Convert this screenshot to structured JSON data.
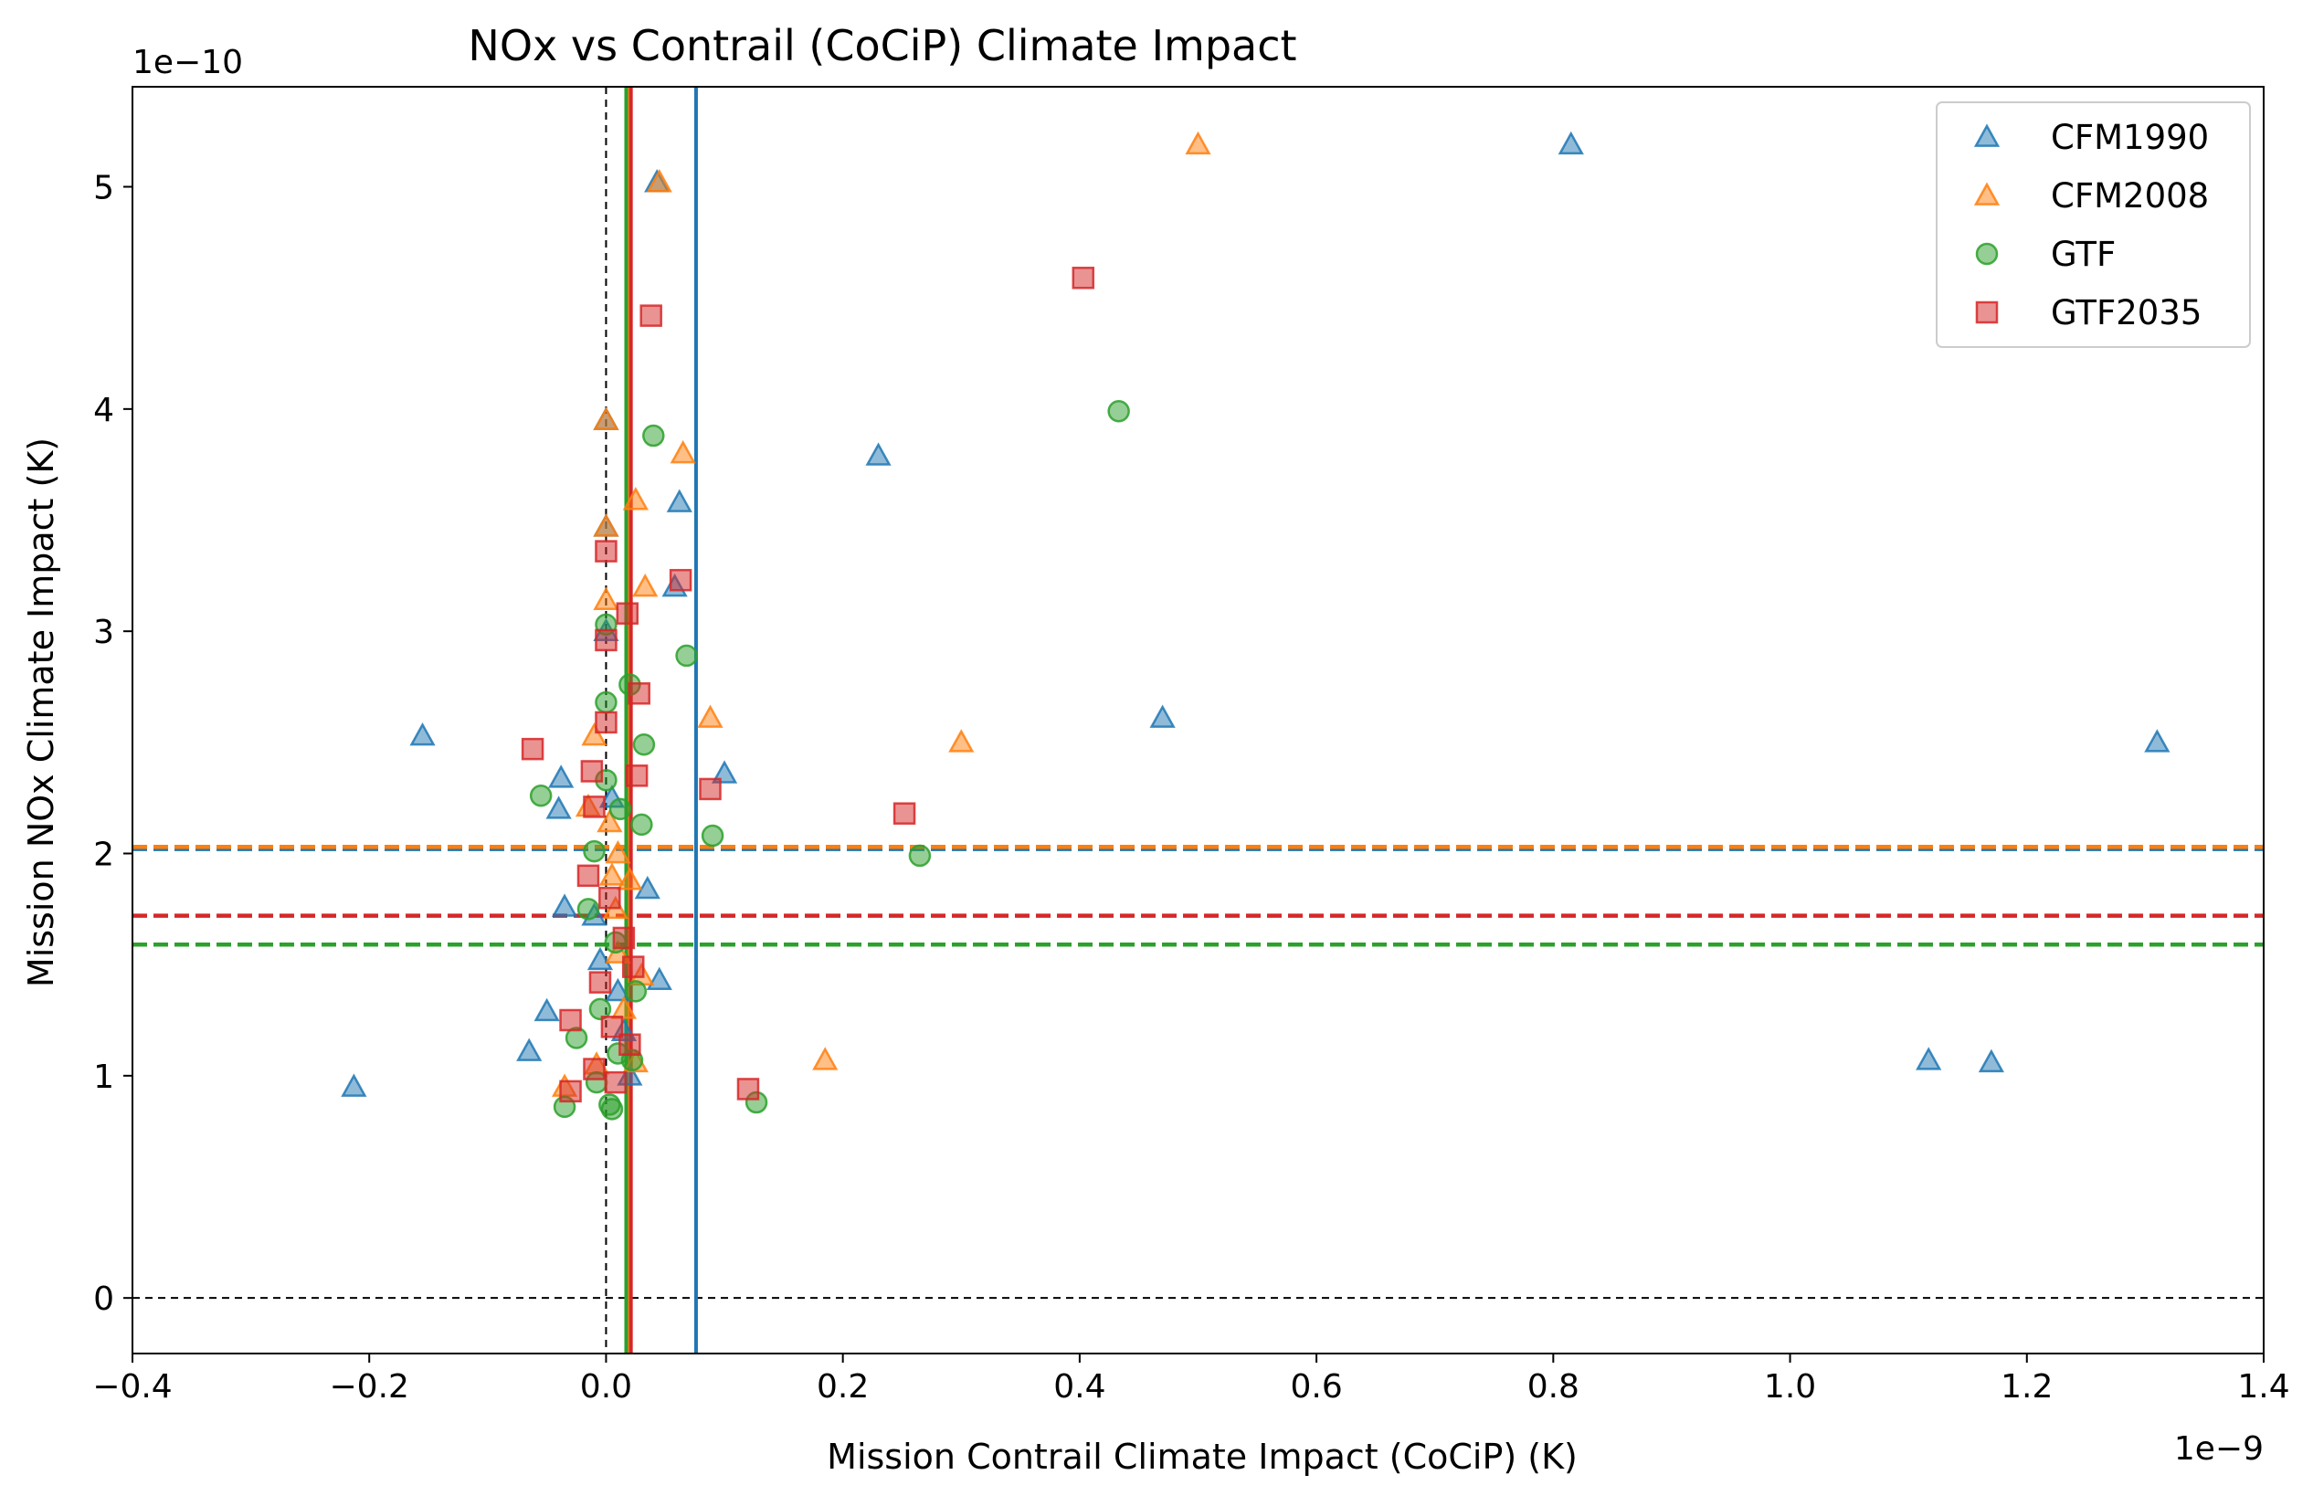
{
  "chart_data": {
    "type": "scatter",
    "title": "NOx vs Contrail (CoCiP) Climate Impact",
    "xlabel": "Mission Contrail Climate Impact (CoCiP) (K)",
    "ylabel": "Mission NOx Climate Impact (K)",
    "x_offset_label": "1e−9",
    "y_offset_label": "1e−10",
    "xlim": [
      -0.4,
      1.4
    ],
    "ylim": [
      -0.25,
      5.45
    ],
    "x_ticks": [
      -0.4,
      -0.2,
      0.0,
      0.2,
      0.4,
      0.6,
      0.8,
      1.0,
      1.2,
      1.4
    ],
    "x_tick_labels": [
      "−0.4",
      "−0.2",
      "0.0",
      "0.2",
      "0.4",
      "0.6",
      "0.8",
      "1.0",
      "1.2",
      "1.4"
    ],
    "y_ticks": [
      0,
      1,
      2,
      3,
      4,
      5
    ],
    "y_tick_labels": [
      "0",
      "1",
      "2",
      "3",
      "4",
      "5"
    ],
    "legend_position": "top-right",
    "grid": false,
    "series": [
      {
        "name": "CFM1990",
        "marker": "triangle",
        "color": "#1f77b4",
        "mean_x": 0.076,
        "mean_y": 2.02,
        "points": [
          [
            -0.213,
            0.95
          ],
          [
            -0.155,
            2.53
          ],
          [
            -0.065,
            1.11
          ],
          [
            -0.05,
            1.29
          ],
          [
            -0.04,
            2.2
          ],
          [
            -0.038,
            2.34
          ],
          [
            -0.035,
            1.76
          ],
          [
            -0.01,
            1.72
          ],
          [
            -0.005,
            1.52
          ],
          [
            0.0,
            3.95
          ],
          [
            0.0,
            3.47
          ],
          [
            0.0,
            3.0
          ],
          [
            0.005,
            2.25
          ],
          [
            0.01,
            1.38
          ],
          [
            0.015,
            1.2
          ],
          [
            0.02,
            1.0
          ],
          [
            0.035,
            1.84
          ],
          [
            0.043,
            5.02
          ],
          [
            0.045,
            1.43
          ],
          [
            0.058,
            3.2
          ],
          [
            0.062,
            3.58
          ],
          [
            0.1,
            2.36
          ],
          [
            0.23,
            3.79
          ],
          [
            0.47,
            2.61
          ],
          [
            0.815,
            5.19
          ],
          [
            1.117,
            1.07
          ],
          [
            1.17,
            1.06
          ],
          [
            1.31,
            2.5
          ]
        ]
      },
      {
        "name": "CFM2008",
        "marker": "triangle",
        "color": "#ff7f0e",
        "mean_x": 0.018,
        "mean_y": 2.03,
        "points": [
          [
            -0.035,
            0.95
          ],
          [
            -0.015,
            2.21
          ],
          [
            -0.01,
            2.53
          ],
          [
            -0.008,
            1.05
          ],
          [
            0.0,
            3.95
          ],
          [
            0.0,
            3.47
          ],
          [
            0.0,
            3.14
          ],
          [
            0.003,
            2.14
          ],
          [
            0.005,
            1.9
          ],
          [
            0.008,
            1.75
          ],
          [
            0.01,
            1.55
          ],
          [
            0.01,
            2.0
          ],
          [
            0.015,
            1.3
          ],
          [
            0.02,
            1.88
          ],
          [
            0.025,
            3.59
          ],
          [
            0.025,
            1.06
          ],
          [
            0.03,
            1.45
          ],
          [
            0.033,
            3.2
          ],
          [
            0.045,
            5.02
          ],
          [
            0.065,
            3.8
          ],
          [
            0.088,
            2.61
          ],
          [
            0.185,
            1.07
          ],
          [
            0.3,
            2.5
          ],
          [
            0.5,
            5.19
          ]
        ]
      },
      {
        "name": "GTF",
        "marker": "circle",
        "color": "#2ca02c",
        "mean_x": 0.017,
        "mean_y": 1.59,
        "points": [
          [
            -0.055,
            2.26
          ],
          [
            -0.035,
            0.86
          ],
          [
            -0.025,
            1.17
          ],
          [
            -0.015,
            1.75
          ],
          [
            -0.01,
            2.01
          ],
          [
            -0.008,
            0.97
          ],
          [
            -0.005,
            1.3
          ],
          [
            0.0,
            2.68
          ],
          [
            0.0,
            2.33
          ],
          [
            0.0,
            3.03
          ],
          [
            0.003,
            0.87
          ],
          [
            0.005,
            0.85
          ],
          [
            0.008,
            1.6
          ],
          [
            0.01,
            1.1
          ],
          [
            0.012,
            2.2
          ],
          [
            0.02,
            2.76
          ],
          [
            0.022,
            1.07
          ],
          [
            0.025,
            1.38
          ],
          [
            0.03,
            2.13
          ],
          [
            0.032,
            2.49
          ],
          [
            0.04,
            3.88
          ],
          [
            0.068,
            2.89
          ],
          [
            0.09,
            2.08
          ],
          [
            0.127,
            0.88
          ],
          [
            0.265,
            1.99
          ],
          [
            0.433,
            3.99
          ]
        ]
      },
      {
        "name": "GTF2035",
        "marker": "square",
        "color": "#d62728",
        "mean_x": 0.021,
        "mean_y": 1.72,
        "points": [
          [
            -0.062,
            2.47
          ],
          [
            -0.03,
            1.25
          ],
          [
            -0.03,
            0.93
          ],
          [
            -0.015,
            1.9
          ],
          [
            -0.012,
            2.37
          ],
          [
            -0.01,
            2.21
          ],
          [
            -0.01,
            1.03
          ],
          [
            -0.005,
            1.42
          ],
          [
            0.0,
            3.36
          ],
          [
            0.0,
            2.96
          ],
          [
            0.0,
            2.59
          ],
          [
            0.003,
            1.8
          ],
          [
            0.005,
            1.22
          ],
          [
            0.008,
            0.97
          ],
          [
            0.015,
            1.62
          ],
          [
            0.018,
            3.08
          ],
          [
            0.02,
            1.14
          ],
          [
            0.023,
            1.49
          ],
          [
            0.026,
            2.35
          ],
          [
            0.028,
            2.72
          ],
          [
            0.038,
            4.42
          ],
          [
            0.063,
            3.23
          ],
          [
            0.088,
            2.29
          ],
          [
            0.12,
            0.94
          ],
          [
            0.252,
            2.18
          ],
          [
            0.403,
            4.59
          ]
        ]
      }
    ]
  }
}
